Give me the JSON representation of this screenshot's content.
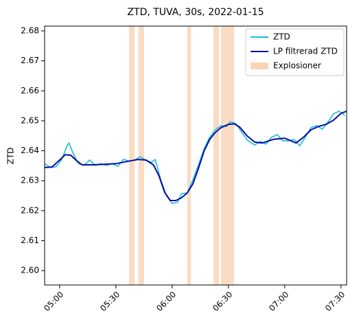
{
  "chart_data": {
    "type": "line",
    "title": "ZTD, TUVA, 30s, 2022-01-15",
    "y_label": "ZTD",
    "xlim": [
      "04:52",
      "07:33"
    ],
    "xticks": [
      "05:00",
      "05:30",
      "06:00",
      "06:30",
      "07:00",
      "07:30"
    ],
    "ylim": [
      2.5952,
      2.6816
    ],
    "yticks": [
      {
        "value": 2.6,
        "label": "2.60"
      },
      2.61,
      2.62,
      2.63,
      2.64,
      2.65,
      2.66,
      2.67,
      2.68
    ],
    "legend": "upper right",
    "series": [
      {
        "name": "ZTD",
        "color": "#17becf",
        "x": [
          "04:52",
          "04:55",
          "04:58",
          "05:01",
          "05:04",
          "05:05",
          "05:07",
          "05:10",
          "05:13",
          "05:16",
          "05:19",
          "05:22",
          "05:25",
          "05:28",
          "05:31",
          "05:34",
          "05:37",
          "05:40",
          "05:43",
          "05:46",
          "05:49",
          "05:51",
          "05:54",
          "05:57",
          "06:00",
          "06:03",
          "06:05",
          "06:08",
          "06:11",
          "06:14",
          "06:17",
          "06:20",
          "06:23",
          "06:26",
          "06:29",
          "06:31",
          "06:34",
          "06:37",
          "06:40",
          "06:44",
          "06:47",
          "06:50",
          "06:53",
          "06:56",
          "06:59",
          "07:02",
          "07:05",
          "07:08",
          "07:11",
          "07:14",
          "07:17",
          "07:20",
          "07:23",
          "07:26",
          "07:29",
          "07:32"
        ],
        "values": [
          2.6357,
          2.6344,
          2.6346,
          2.6369,
          2.6417,
          2.6426,
          2.6394,
          2.6357,
          2.6351,
          2.6369,
          2.6351,
          2.6357,
          2.6351,
          2.6357,
          2.6348,
          2.6371,
          2.6366,
          2.6369,
          2.638,
          2.6367,
          2.6362,
          2.6371,
          2.6302,
          2.625,
          2.6224,
          2.6229,
          2.6257,
          2.6259,
          2.6302,
          2.6353,
          2.6406,
          2.6445,
          2.647,
          2.6484,
          2.6481,
          2.6497,
          2.649,
          2.6463,
          2.6435,
          2.6419,
          2.6431,
          2.6422,
          2.6445,
          2.6454,
          2.6433,
          2.6433,
          2.6438,
          2.6417,
          2.6445,
          2.6477,
          2.6484,
          2.6472,
          2.6495,
          2.6523,
          2.6532,
          2.6518
        ]
      },
      {
        "name": "LP filtrerad ZTD",
        "color": "#0a0aa8",
        "x": [
          "04:52",
          "04:56",
          "05:00",
          "05:03",
          "05:06",
          "05:09",
          "05:12",
          "05:18",
          "05:24",
          "05:30",
          "05:36",
          "05:42",
          "05:46",
          "05:50",
          "05:53",
          "05:56",
          "05:59",
          "06:02",
          "06:05",
          "06:08",
          "06:11",
          "06:14",
          "06:17",
          "06:20",
          "06:23",
          "06:26",
          "06:30",
          "06:33",
          "06:36",
          "06:40",
          "06:44",
          "06:48",
          "06:54",
          "07:00",
          "07:06",
          "07:10",
          "07:14",
          "07:18",
          "07:22",
          "07:26",
          "07:30",
          "07:33"
        ],
        "values": [
          2.6344,
          2.6346,
          2.6369,
          2.6387,
          2.6385,
          2.6367,
          2.6353,
          2.6353,
          2.6355,
          2.6357,
          2.6364,
          2.6371,
          2.6369,
          2.6353,
          2.6316,
          2.6261,
          2.6234,
          2.6234,
          2.6243,
          2.6259,
          2.6289,
          2.6341,
          2.6399,
          2.6438,
          2.6461,
          2.6477,
          2.6488,
          2.649,
          2.6479,
          2.6449,
          2.6429,
          2.6426,
          2.6438,
          2.6442,
          2.6426,
          2.6445,
          2.647,
          2.6481,
          2.6488,
          2.6502,
          2.6525,
          2.6532
        ]
      }
    ],
    "shaded": {
      "name": "Explosioner",
      "color": "#f9d5b8",
      "spans": [
        [
          "05:37",
          "05:40"
        ],
        [
          "05:42",
          "05:45"
        ],
        [
          "06:08",
          "06:10"
        ],
        [
          "06:22",
          "06:25"
        ],
        [
          "06:26",
          "06:33"
        ]
      ]
    }
  }
}
